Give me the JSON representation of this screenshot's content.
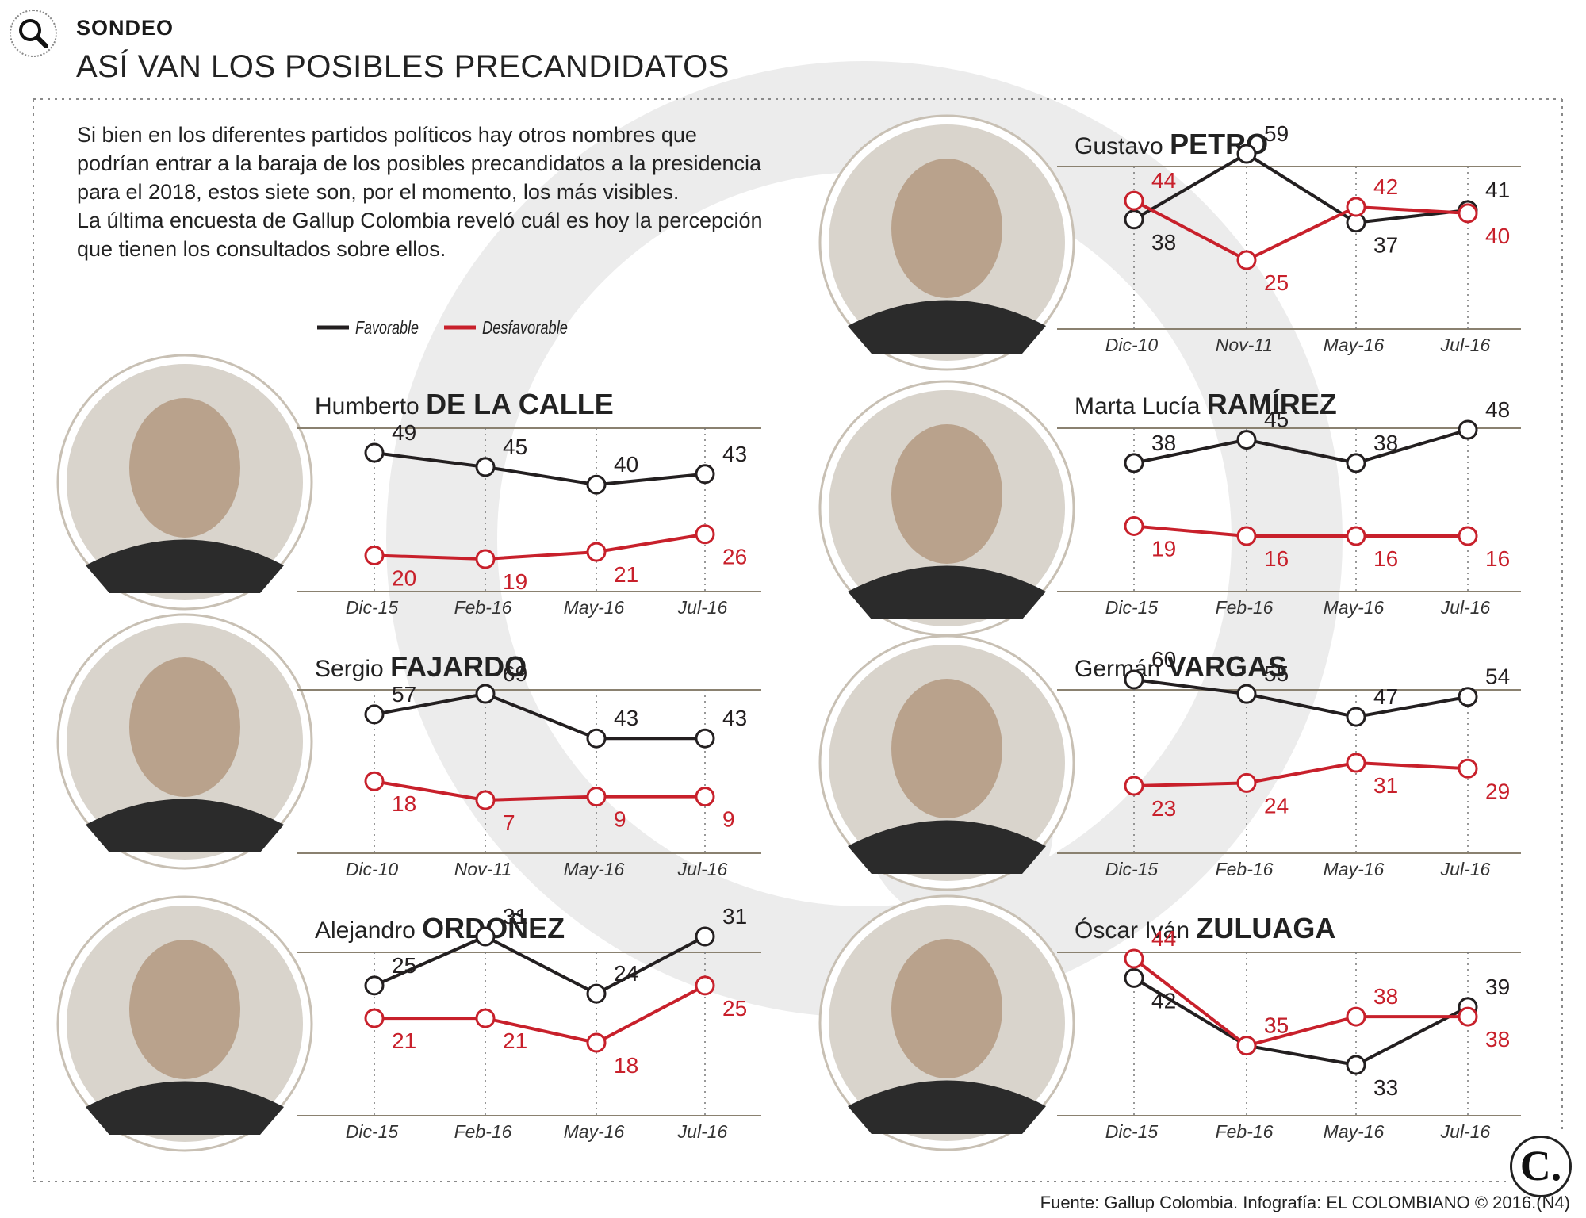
{
  "header": {
    "kicker": "SONDEO",
    "title": "ASÍ VAN LOS POSIBLES PRECANDIDATOS"
  },
  "intro": {
    "line1": "Si bien en los diferentes partidos políticos hay otros nombres que",
    "line2": "podrían entrar a la baraja de los posibles precandidatos a la presidencia",
    "line3": "para el 2018, estos siete son, por el momento, los más visibles.",
    "line4": "La última encuesta de Gallup Colombia reveló cuál es hoy la percepción",
    "line5": "que tienen los consultados sobre ellos."
  },
  "legend": {
    "favorable": "Favorable",
    "desfavorable": "Desfavorable"
  },
  "colors": {
    "favorable": "#231f20",
    "desfavorable": "#c8202b",
    "watermark": "#e9e9e9",
    "rule": "#8a8170"
  },
  "chart_data": [
    {
      "type": "line",
      "first_name": "Gustavo",
      "last_name": "PETRO",
      "categories": [
        "Dic-10",
        "Nov-11",
        "May-16",
        "Jul-16"
      ],
      "series": [
        {
          "name": "Favorable",
          "values": [
            38,
            59,
            37,
            41
          ]
        },
        {
          "name": "Desfavorable",
          "values": [
            44,
            25,
            42,
            40
          ]
        }
      ]
    },
    {
      "type": "line",
      "first_name": "Humberto",
      "last_name": "DE LA CALLE",
      "categories": [
        "Dic-15",
        "Feb-16",
        "May-16",
        "Jul-16"
      ],
      "series": [
        {
          "name": "Favorable",
          "values": [
            49,
            45,
            40,
            43
          ]
        },
        {
          "name": "Desfavorable",
          "values": [
            20,
            19,
            21,
            26
          ]
        }
      ]
    },
    {
      "type": "line",
      "first_name": "Marta Lucía",
      "last_name": "RAMÍREZ",
      "categories": [
        "Dic-15",
        "Feb-16",
        "May-16",
        "Jul-16"
      ],
      "series": [
        {
          "name": "Favorable",
          "values": [
            38,
            45,
            38,
            48
          ]
        },
        {
          "name": "Desfavorable",
          "values": [
            19,
            16,
            16,
            16
          ]
        }
      ]
    },
    {
      "type": "line",
      "first_name": "Sergio",
      "last_name": "FAJARDO",
      "categories": [
        "Dic-10",
        "Nov-11",
        "May-16",
        "Jul-16"
      ],
      "series": [
        {
          "name": "Favorable",
          "values": [
            57,
            69,
            43,
            43
          ]
        },
        {
          "name": "Desfavorable",
          "values": [
            18,
            7,
            9,
            9
          ]
        }
      ]
    },
    {
      "type": "line",
      "first_name": "Germán",
      "last_name": "VARGAS",
      "categories": [
        "Dic-15",
        "Feb-16",
        "May-16",
        "Jul-16"
      ],
      "series": [
        {
          "name": "Favorable",
          "values": [
            60,
            55,
            47,
            54
          ]
        },
        {
          "name": "Desfavorable",
          "values": [
            23,
            24,
            31,
            29
          ]
        }
      ]
    },
    {
      "type": "line",
      "first_name": "Alejandro",
      "last_name": "ORDOÑEZ",
      "categories": [
        "Dic-15",
        "Feb-16",
        "May-16",
        "Jul-16"
      ],
      "series": [
        {
          "name": "Favorable",
          "values": [
            25,
            31,
            24,
            31
          ]
        },
        {
          "name": "Desfavorable",
          "values": [
            21,
            21,
            18,
            25
          ]
        }
      ]
    },
    {
      "type": "line",
      "first_name": "Óscar Iván",
      "last_name": "ZULUAGA",
      "categories": [
        "Dic-15",
        "Feb-16",
        "May-16",
        "Jul-16"
      ],
      "series": [
        {
          "name": "Favorable",
          "values": [
            42,
            35,
            33,
            39
          ]
        },
        {
          "name": "Desfavorable",
          "values": [
            44,
            35,
            38,
            38
          ]
        }
      ]
    }
  ],
  "footer": {
    "source": "Fuente: Gallup Colombia. Infografía: EL COLOMBIANO © 2016.(N4)",
    "logo_letter": "C."
  }
}
